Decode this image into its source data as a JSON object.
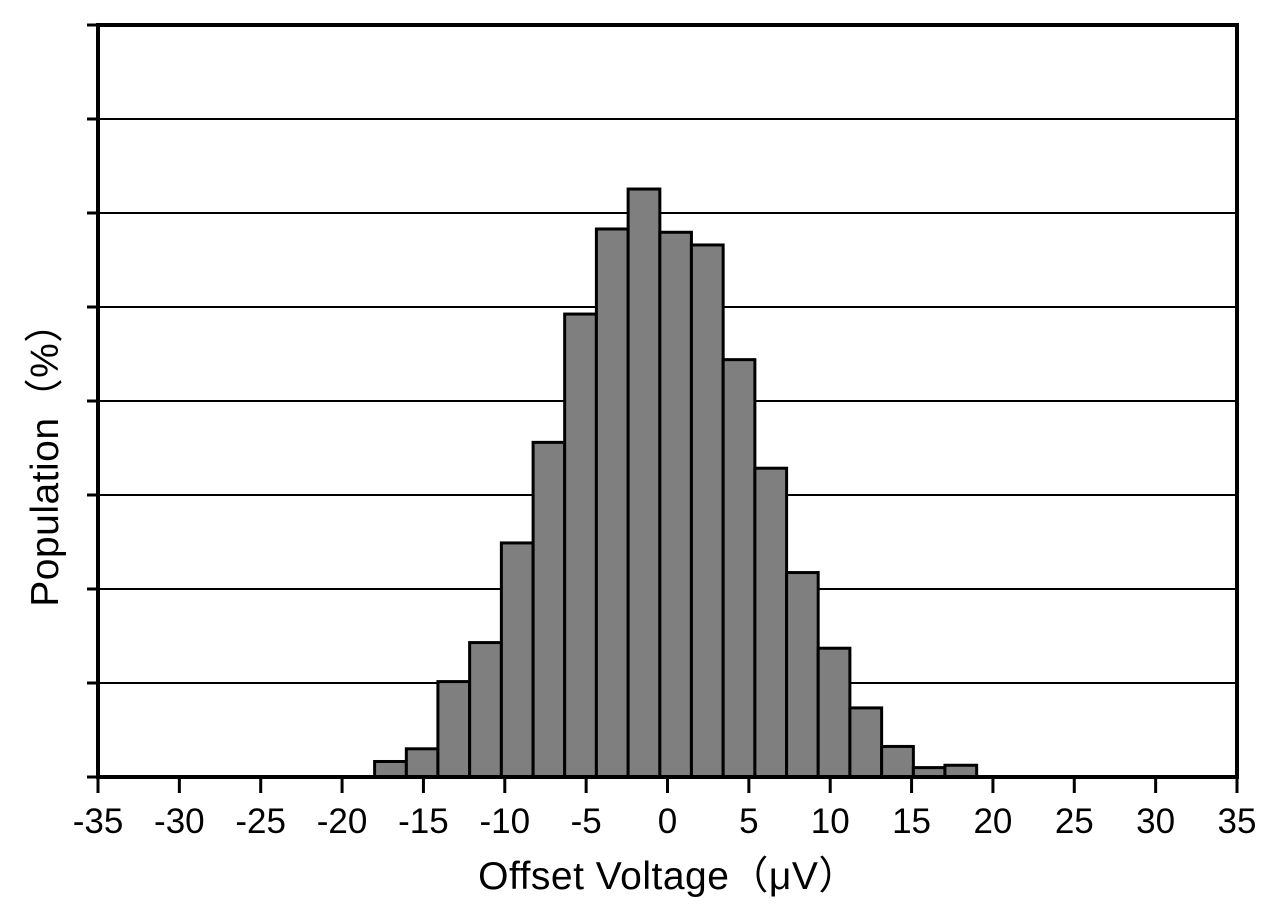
{
  "chart_data": {
    "type": "bar",
    "subtype": "histogram",
    "title": "",
    "xlabel": "Offset Voltage（μV）",
    "ylabel": "Population（%）",
    "x_axis": {
      "min": -35,
      "max": 35,
      "tick_step": 5,
      "tick_labels": [
        "-35",
        "-30",
        "-25",
        "-20",
        "-15",
        "-10",
        "-5",
        "0",
        "5",
        "10",
        "15",
        "20",
        "25",
        "30",
        "35"
      ]
    },
    "y_axis": {
      "min": 0,
      "max": 16,
      "grid_step_percent": 2,
      "num_divisions": 8,
      "tick_labels_shown": false
    },
    "bin_edges_uV": [
      -18,
      -16.05,
      -14.11,
      -12.16,
      -10.21,
      -8.26,
      -6.32,
      -4.37,
      -2.42,
      -0.47,
      1.47,
      3.42,
      5.37,
      7.32,
      9.26,
      11.21,
      13.16,
      15.11,
      17.05,
      19
    ],
    "values_percent": [
      0.33,
      0.6,
      2.03,
      2.86,
      4.98,
      7.12,
      9.85,
      11.66,
      12.51,
      11.59,
      11.32,
      8.88,
      6.57,
      4.35,
      2.74,
      1.47,
      0.65,
      0.2,
      0.25
    ],
    "grid_on": true,
    "legend": null,
    "colors": {
      "bar_fill": "#7f7f7f",
      "bar_border": "#000000",
      "frame": "#000000",
      "gridline": "#000000",
      "background": "#ffffff",
      "text": "#000000"
    }
  }
}
